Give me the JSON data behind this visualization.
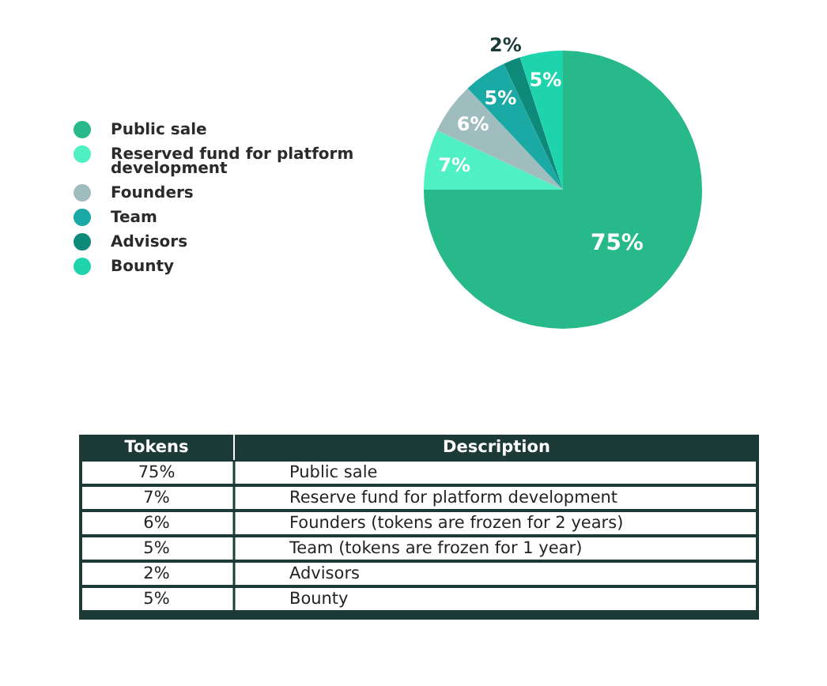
{
  "chart_data": [
    {
      "type": "pie",
      "categories": [
        "Public sale",
        "Reserved fund for platform development",
        "Founders",
        "Team",
        "Advisors",
        "Bounty"
      ],
      "values": [
        75,
        7,
        6,
        5,
        2,
        5
      ],
      "colors": [
        "#27b98a",
        "#4ff0c4",
        "#9fbcbe",
        "#1aa9a5",
        "#0e8a7a",
        "#1fd3ad"
      ],
      "value_labels": [
        "75%",
        "7%",
        "6%",
        "5%",
        "2%",
        "5%"
      ],
      "legend": "left"
    },
    {
      "type": "other",
      "annotations": [
        "Tokens",
        "Description",
        "75%",
        "Public sale",
        "7%",
        "Reserve fund for platform development",
        "6%",
        "Founders (tokens are frozen for 2 years)",
        "5%",
        "Team (tokens are frozen for 1 year)",
        "2%",
        "Advisors",
        "5%",
        "Bounty"
      ]
    }
  ]
}
